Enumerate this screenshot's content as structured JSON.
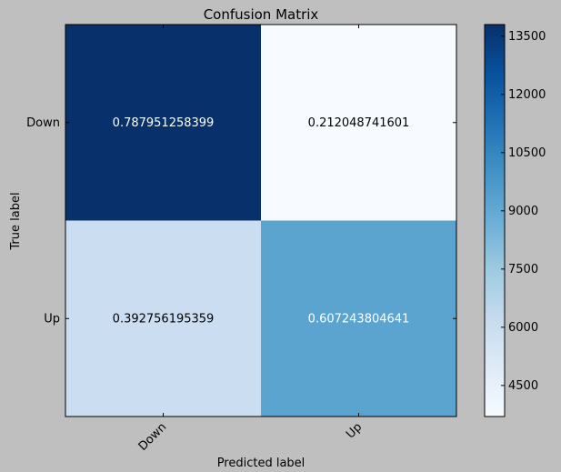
{
  "chart_data": {
    "type": "heatmap",
    "title": "Confusion Matrix",
    "xlabel": "Predicted label",
    "ylabel": "True label",
    "x_categories": [
      "Down",
      "Up"
    ],
    "y_categories": [
      "Down",
      "Up"
    ],
    "cell_labels": [
      [
        "0.787951258399",
        "0.212048741601"
      ],
      [
        "0.392756195359",
        "0.607243804641"
      ]
    ],
    "color_values": [
      [
        13800,
        3700
      ],
      [
        5950,
        9200
      ]
    ],
    "colorbar": {
      "ticks": [
        4500,
        6000,
        7500,
        9000,
        10500,
        12000,
        13500
      ],
      "range": [
        3700,
        13800
      ]
    },
    "colormap": [
      "#f7fbff",
      "#deebf7",
      "#c6dbef",
      "#9ecae1",
      "#6baed6",
      "#4292c6",
      "#2171b5",
      "#08519c",
      "#08306b"
    ]
  }
}
